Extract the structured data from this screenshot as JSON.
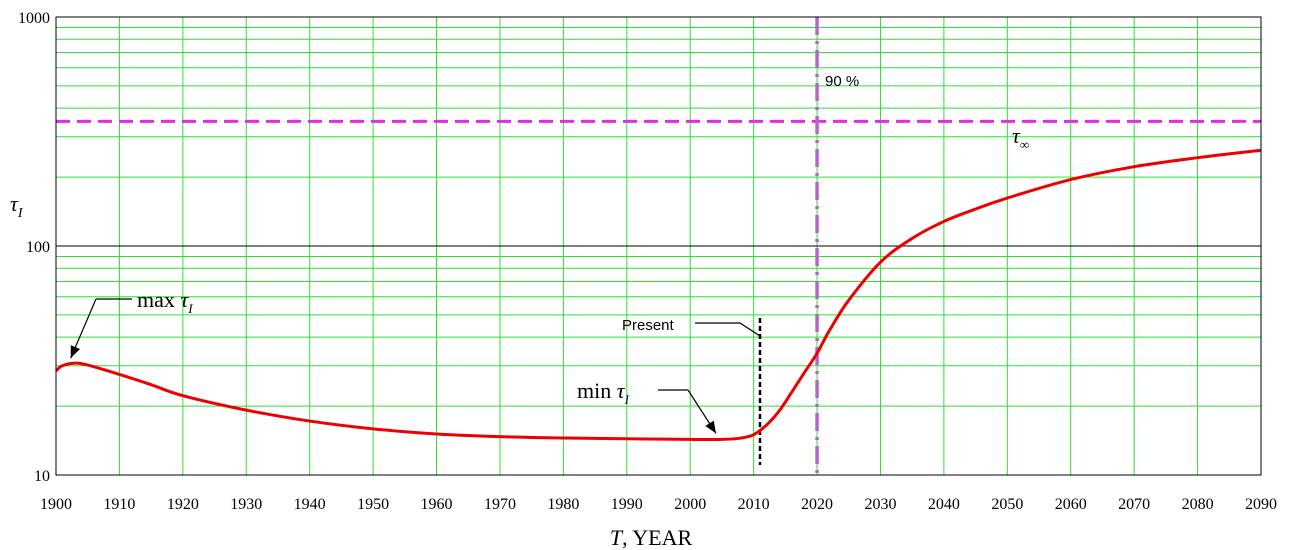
{
  "chart_data": {
    "type": "line",
    "title": "",
    "xlabel_var": "T",
    "xlabel_rest": ", YEAR",
    "ylabel_var": "τ",
    "ylabel_sub": "I",
    "xlim": [
      1900,
      2090
    ],
    "ylim": [
      10,
      1000
    ],
    "yscale": "log",
    "grid": true,
    "x_ticks": [
      1900,
      1910,
      1920,
      1930,
      1940,
      1950,
      1960,
      1970,
      1980,
      1990,
      2000,
      2010,
      2020,
      2030,
      2040,
      2050,
      2060,
      2070,
      2080,
      2090
    ],
    "y_ticks": [
      10,
      100,
      1000
    ],
    "colors": {
      "curve": "#ee0000",
      "grid": "#33dd33",
      "decade_line": "#000000",
      "tau_inf_line": "#e02de0",
      "vline_90": "#b366c8",
      "present_line": "#000000"
    },
    "series": [
      {
        "x": [
          1900,
          1901,
          1903,
          1905,
          1910,
          1915,
          1920,
          1930,
          1940,
          1950,
          1960,
          1970,
          1980,
          1990,
          2000,
          2005,
          2008,
          2010,
          2012,
          2014,
          2016,
          2018,
          2020,
          2022,
          2025,
          2030,
          2035,
          2040,
          2045,
          2050,
          2060,
          2070,
          2080,
          2090
        ],
        "y": [
          28.5,
          30.0,
          30.8,
          30.2,
          27.5,
          24.8,
          22.2,
          19.2,
          17.2,
          15.9,
          15.1,
          14.7,
          14.5,
          14.4,
          14.3,
          14.3,
          14.5,
          15.0,
          16.5,
          19.0,
          23.0,
          28.0,
          34.0,
          43.0,
          58.0,
          85.0,
          108.0,
          128.0,
          145.0,
          162.0,
          195.0,
          222.0,
          243.0,
          262.0
        ]
      }
    ],
    "tau_inf": 350,
    "tau_inf_label_sym": "τ",
    "tau_inf_label_sub": "∞",
    "vline_x": 2020,
    "vline_label": "90 %",
    "present_x": 2011,
    "present_label": "Present",
    "max_label_text": "max ",
    "min_label_text": "min ",
    "tau_sym": "τ",
    "tau_sub": "I",
    "max_point": {
      "x": 1902,
      "y": 30.8
    },
    "min_point": {
      "x": 2006,
      "y": 14.3
    }
  }
}
